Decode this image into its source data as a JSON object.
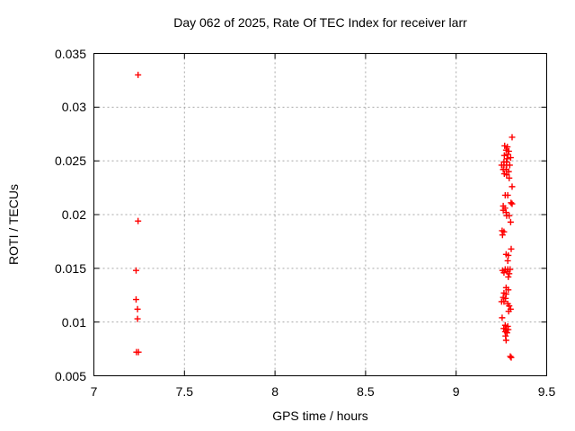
{
  "page": {
    "background_color": "#ffffff",
    "text_color": "#000000"
  },
  "chart_data": {
    "type": "scatter",
    "title": "Day 062 of 2025, Rate Of TEC Index for receiver larr",
    "xlabel": "GPS time / hours",
    "ylabel": "ROTI / TECUs",
    "xlim": [
      7,
      9.5
    ],
    "ylim": [
      0.005,
      0.035
    ],
    "xticks": {
      "values": [
        7,
        7.5,
        8,
        8.5,
        9,
        9.5
      ],
      "labels": [
        "7",
        "7.5",
        "8",
        "8.5",
        "9",
        "9.5"
      ]
    },
    "yticks": {
      "values": [
        0.005,
        0.01,
        0.015,
        0.02,
        0.025,
        0.03,
        0.035
      ],
      "labels": [
        "0.005",
        "0.01",
        "0.015",
        "0.02",
        "0.025",
        "0.03",
        "0.035"
      ]
    },
    "grid": true,
    "grid_style": "dashed",
    "grid_color": "#a8a8a8",
    "axis_color": "#000000",
    "legend_position": "none",
    "marker": "plus",
    "marker_color": "#ff0000",
    "marker_size": 7,
    "series": [
      {
        "name": "ROTI",
        "points": [
          [
            7.244,
            0.033
          ],
          [
            7.244,
            0.0194
          ],
          [
            7.233,
            0.0148
          ],
          [
            7.233,
            0.0121
          ],
          [
            7.241,
            0.0112
          ],
          [
            7.241,
            0.0103
          ],
          [
            7.235,
            0.0072
          ],
          [
            7.246,
            0.0072
          ],
          [
            9.309,
            0.0272
          ],
          [
            9.268,
            0.0264
          ],
          [
            9.283,
            0.0263
          ],
          [
            9.276,
            0.026
          ],
          [
            9.291,
            0.0259
          ],
          [
            9.286,
            0.0256
          ],
          [
            9.266,
            0.0255
          ],
          [
            9.301,
            0.0253
          ],
          [
            9.281,
            0.0252
          ],
          [
            9.264,
            0.0249
          ],
          [
            9.278,
            0.0249
          ],
          [
            9.251,
            0.0246
          ],
          [
            9.264,
            0.0246
          ],
          [
            9.279,
            0.0246
          ],
          [
            9.296,
            0.0246
          ],
          [
            9.26,
            0.0242
          ],
          [
            9.276,
            0.0242
          ],
          [
            9.29,
            0.024
          ],
          [
            9.266,
            0.0238
          ],
          [
            9.279,
            0.0237
          ],
          [
            9.293,
            0.0234
          ],
          [
            9.309,
            0.0226
          ],
          [
            9.271,
            0.0218
          ],
          [
            9.285,
            0.0218
          ],
          [
            9.303,
            0.0211
          ],
          [
            9.309,
            0.021
          ],
          [
            9.26,
            0.0208
          ],
          [
            9.27,
            0.0206
          ],
          [
            9.26,
            0.0204
          ],
          [
            9.276,
            0.0202
          ],
          [
            9.279,
            0.0199
          ],
          [
            9.293,
            0.0199
          ],
          [
            9.301,
            0.0193
          ],
          [
            9.254,
            0.0185
          ],
          [
            9.264,
            0.0184
          ],
          [
            9.256,
            0.0181
          ],
          [
            9.304,
            0.0168
          ],
          [
            9.276,
            0.0163
          ],
          [
            9.288,
            0.0162
          ],
          [
            9.285,
            0.0157
          ],
          [
            9.271,
            0.0149
          ],
          [
            9.285,
            0.0149
          ],
          [
            9.298,
            0.0149
          ],
          [
            9.256,
            0.0148
          ],
          [
            9.281,
            0.0147
          ],
          [
            9.264,
            0.0146
          ],
          [
            9.293,
            0.0145
          ],
          [
            9.288,
            0.0142
          ],
          [
            9.276,
            0.0132
          ],
          [
            9.288,
            0.013
          ],
          [
            9.264,
            0.0127
          ],
          [
            9.276,
            0.0126
          ],
          [
            9.26,
            0.0123
          ],
          [
            9.273,
            0.0122
          ],
          [
            9.251,
            0.0119
          ],
          [
            9.264,
            0.0119
          ],
          [
            9.285,
            0.0117
          ],
          [
            9.293,
            0.0115
          ],
          [
            9.301,
            0.0112
          ],
          [
            9.29,
            0.011
          ],
          [
            9.254,
            0.0104
          ],
          [
            9.271,
            0.0097
          ],
          [
            9.285,
            0.0096
          ],
          [
            9.263,
            0.0094
          ],
          [
            9.276,
            0.0093
          ],
          [
            9.288,
            0.0093
          ],
          [
            9.271,
            0.0091
          ],
          [
            9.281,
            0.009
          ],
          [
            9.273,
            0.0087
          ],
          [
            9.276,
            0.0083
          ],
          [
            9.299,
            0.0068
          ],
          [
            9.304,
            0.0067
          ]
        ]
      }
    ]
  }
}
